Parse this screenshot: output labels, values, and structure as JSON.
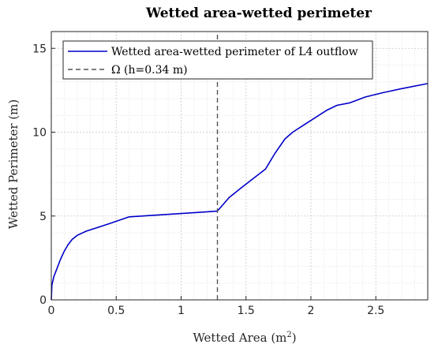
{
  "chart_data": {
    "type": "line",
    "title": "Wetted area-wetted perimeter",
    "xlabel": "Wetted Area (m",
    "xlabel_sup": "2",
    "xlabel_end": ")",
    "ylabel": "Wetted Perimeter (m)",
    "xlim": [
      0,
      2.9
    ],
    "ylim": [
      0,
      16
    ],
    "xticks": [
      0,
      0.5,
      1,
      1.5,
      2,
      2.5
    ],
    "xtick_labels": [
      "0",
      "0.5",
      "1",
      "1.5",
      "2",
      "2.5"
    ],
    "yticks": [
      0,
      5,
      10,
      15
    ],
    "ytick_labels": [
      "0",
      "5",
      "10",
      "15"
    ],
    "grid": true,
    "legend_position": "top-left",
    "series": [
      {
        "name": "Wetted area-wetted perimeter of L4 outflow",
        "color": "#0000c8",
        "style": "solid",
        "x": [
          0,
          0.005,
          0.02,
          0.04,
          0.07,
          0.1,
          0.13,
          0.16,
          0.2,
          0.27,
          0.35,
          0.45,
          0.6,
          0.8,
          1.0,
          1.2,
          1.28,
          1.32,
          1.37,
          1.45,
          1.55,
          1.65,
          1.72,
          1.8,
          1.86,
          1.95,
          2.05,
          2.12,
          2.2,
          2.3,
          2.42,
          2.55,
          2.7,
          2.9
        ],
        "y": [
          0,
          0.9,
          1.4,
          1.8,
          2.4,
          2.9,
          3.3,
          3.6,
          3.85,
          4.1,
          4.3,
          4.55,
          4.95,
          5.05,
          5.15,
          5.25,
          5.3,
          5.65,
          6.1,
          6.6,
          7.2,
          7.8,
          8.7,
          9.6,
          10.0,
          10.45,
          10.95,
          11.3,
          11.6,
          11.75,
          12.1,
          12.35,
          12.6,
          12.9
        ]
      },
      {
        "name": "Ω (h=0.34 m)",
        "color": "#555555",
        "style": "dashed",
        "x": [
          1.28,
          1.28
        ],
        "y": [
          0,
          16
        ]
      }
    ]
  }
}
